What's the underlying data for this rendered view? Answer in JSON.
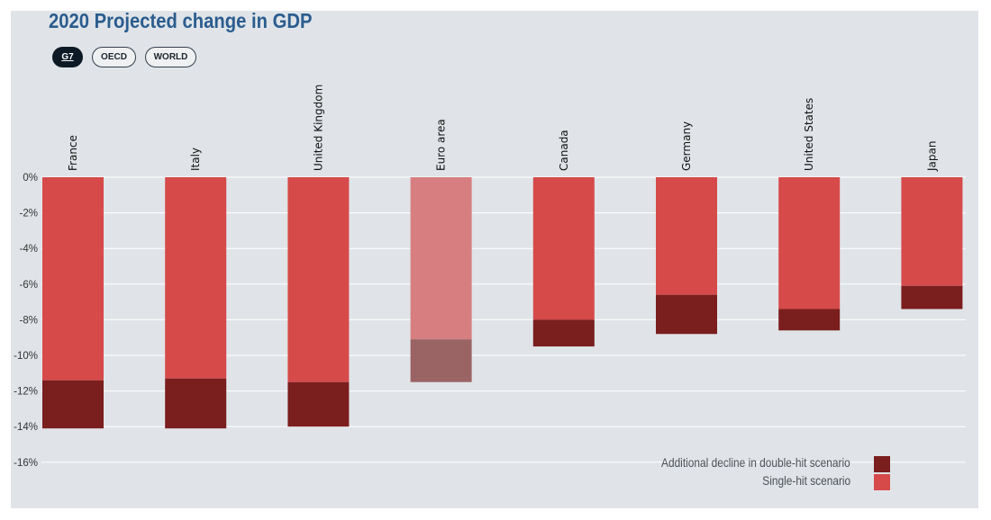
{
  "title": "2020 Projected change in GDP",
  "filters": [
    {
      "label": "G7",
      "active": true
    },
    {
      "label": "OECD",
      "active": false
    },
    {
      "label": "WORLD",
      "active": false
    }
  ],
  "colors": {
    "single_hit": "#d64a4a",
    "double_hit": "#7a1e1e",
    "single_hit_muted": "#d77f80",
    "double_hit_muted": "#9a6364",
    "grid": "#ffffff",
    "axis_text": "#333333"
  },
  "legend": {
    "double_hit_label": "Additional decline in double-hit scenario",
    "single_hit_label": "Single-hit scenario"
  },
  "chart_data": {
    "type": "bar",
    "stacked": true,
    "categories": [
      "France",
      "Italy",
      "United Kingdom",
      "Euro area",
      "Canada",
      "Germany",
      "United States",
      "Japan"
    ],
    "series": [
      {
        "name": "Single-hit scenario",
        "values": [
          -11.4,
          -11.3,
          -11.5,
          -9.1,
          -8.0,
          -6.6,
          -7.4,
          -6.1
        ]
      },
      {
        "name": "Additional decline in double-hit scenario",
        "values": [
          -2.7,
          -2.8,
          -2.5,
          -2.4,
          -1.5,
          -2.2,
          -1.2,
          -1.3
        ]
      }
    ],
    "highlighted_muted": [
      "Euro area"
    ],
    "ylim": [
      -16,
      0
    ],
    "yticks": [
      0,
      -2,
      -4,
      -6,
      -8,
      -10,
      -12,
      -14,
      -16
    ],
    "ytick_labels": [
      "0%",
      "-2%",
      "-4%",
      "-6%",
      "-8%",
      "-10%",
      "-12%",
      "-14%",
      "-16%"
    ],
    "grid": true,
    "legend_position": "bottom-right"
  }
}
